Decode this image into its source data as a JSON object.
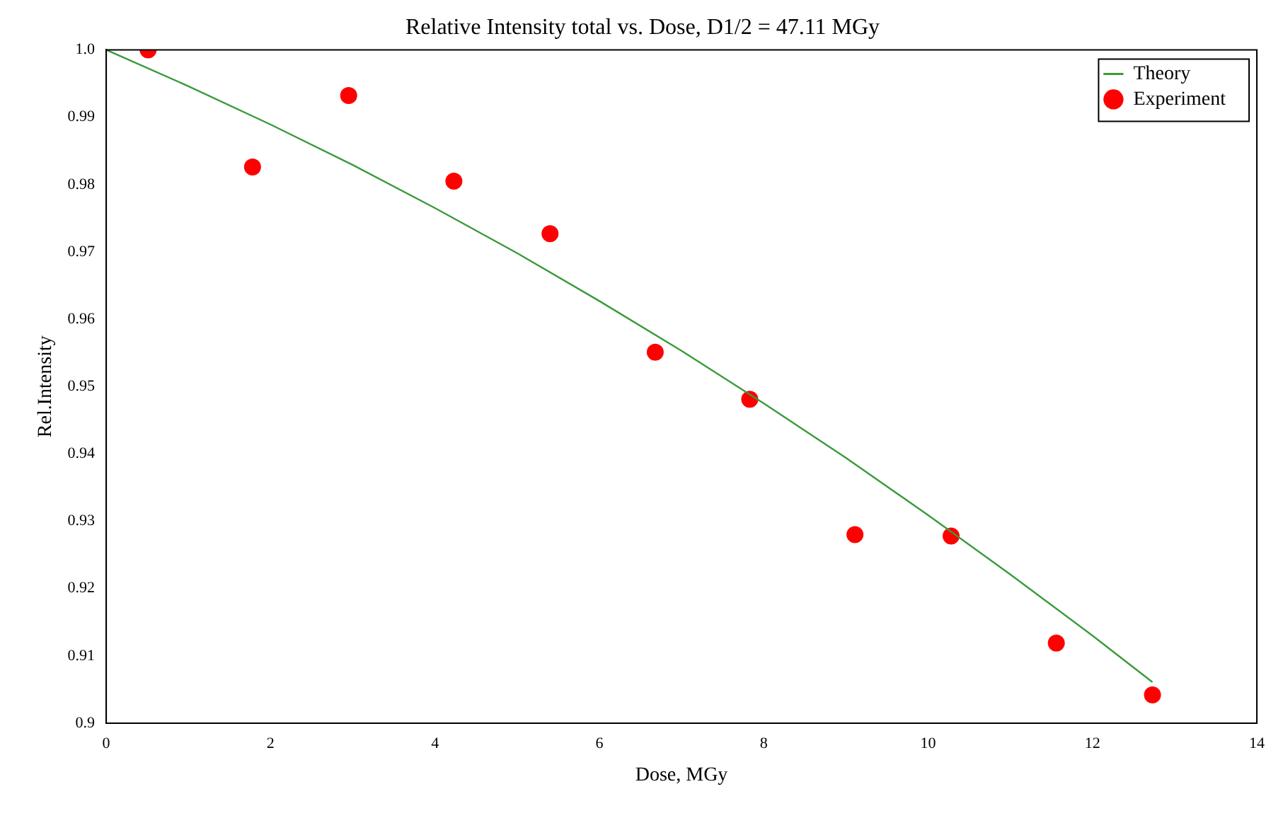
{
  "chart_data": {
    "type": "scatter",
    "title": "Relative Intensity total vs. Dose, D1/2 = 47.11 MGy",
    "xlabel": "Dose, MGy",
    "ylabel": "Rel.Intensity",
    "xlim": [
      0,
      14
    ],
    "xticks": [
      0,
      2,
      4,
      6,
      8,
      10,
      12,
      14
    ],
    "ylim": [
      0.9,
      1.0
    ],
    "yticks": [
      0.9,
      0.91,
      0.92,
      0.93,
      0.94,
      0.95,
      0.96,
      0.97,
      0.98,
      0.99,
      {
        "value": 1.0,
        "label": "1.0"
      }
    ],
    "grid": false,
    "legend": "top right",
    "series": [
      {
        "name": "Theory",
        "type": "line",
        "color": "#3a9a3a",
        "marker": "none",
        "line_style": "solid",
        "x": [
          0,
          1,
          2,
          3,
          4,
          5,
          6,
          7,
          8,
          9,
          10,
          11,
          12,
          12.73
        ],
        "values": [
          1.0,
          0.9946,
          0.9889,
          0.9829,
          0.9765,
          0.9698,
          0.9627,
          0.9553,
          0.9475,
          0.9394,
          0.9309,
          0.9221,
          0.913,
          0.9061
        ]
      },
      {
        "name": "Experiment",
        "type": "scatter",
        "color": "#ff0000",
        "marker": "circle",
        "x": [
          0.51,
          1.78,
          2.95,
          4.23,
          5.4,
          6.68,
          7.83,
          9.11,
          10.28,
          11.56,
          12.73
        ],
        "values": [
          1.0,
          0.9826,
          0.9932,
          0.9805,
          0.9727,
          0.9551,
          0.9481,
          0.928,
          0.9278,
          0.9119,
          0.9042
        ]
      }
    ]
  }
}
